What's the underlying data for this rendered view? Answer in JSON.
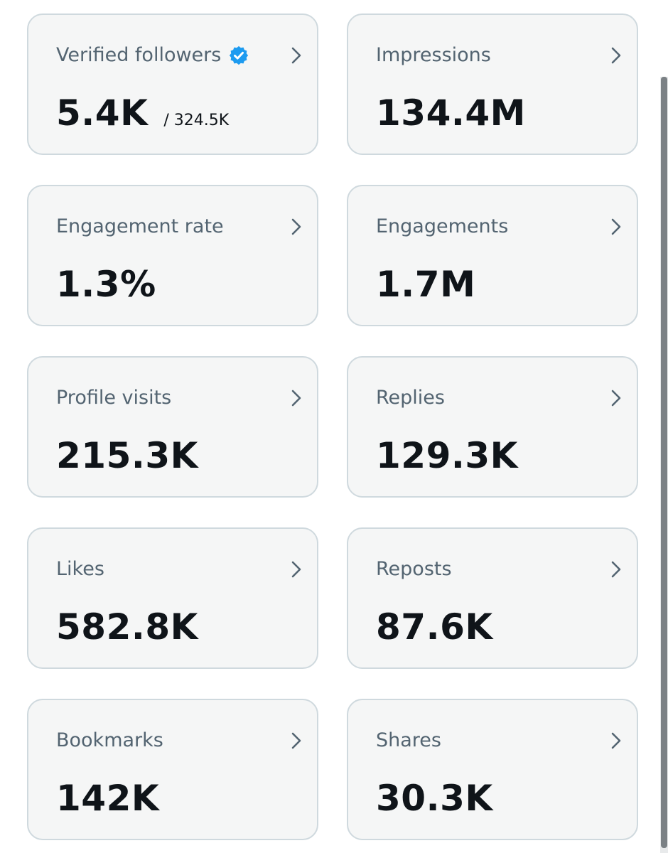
{
  "colors": {
    "card_background": "#f5f6f6",
    "card_border": "#cfd9de",
    "label_text": "#536471",
    "value_text": "#0f1419",
    "verified_badge": "#1d9bf0"
  },
  "metrics": [
    {
      "label": "Verified followers",
      "value": "5.4K",
      "sub_value": "/ 324.5K",
      "badge_icon": "verified-badge-icon",
      "chevron_icon": "chevron-right-icon"
    },
    {
      "label": "Impressions",
      "value": "134.4M",
      "chevron_icon": "chevron-right-icon"
    },
    {
      "label": "Engagement rate",
      "value": "1.3%",
      "chevron_icon": "chevron-right-icon"
    },
    {
      "label": "Engagements",
      "value": "1.7M",
      "chevron_icon": "chevron-right-icon"
    },
    {
      "label": "Profile visits",
      "value": "215.3K",
      "chevron_icon": "chevron-right-icon"
    },
    {
      "label": "Replies",
      "value": "129.3K",
      "chevron_icon": "chevron-right-icon"
    },
    {
      "label": "Likes",
      "value": "582.8K",
      "chevron_icon": "chevron-right-icon"
    },
    {
      "label": "Reposts",
      "value": "87.6K",
      "chevron_icon": "chevron-right-icon"
    },
    {
      "label": "Bookmarks",
      "value": "142K",
      "chevron_icon": "chevron-right-icon"
    },
    {
      "label": "Shares",
      "value": "30.3K",
      "chevron_icon": "chevron-right-icon"
    }
  ]
}
